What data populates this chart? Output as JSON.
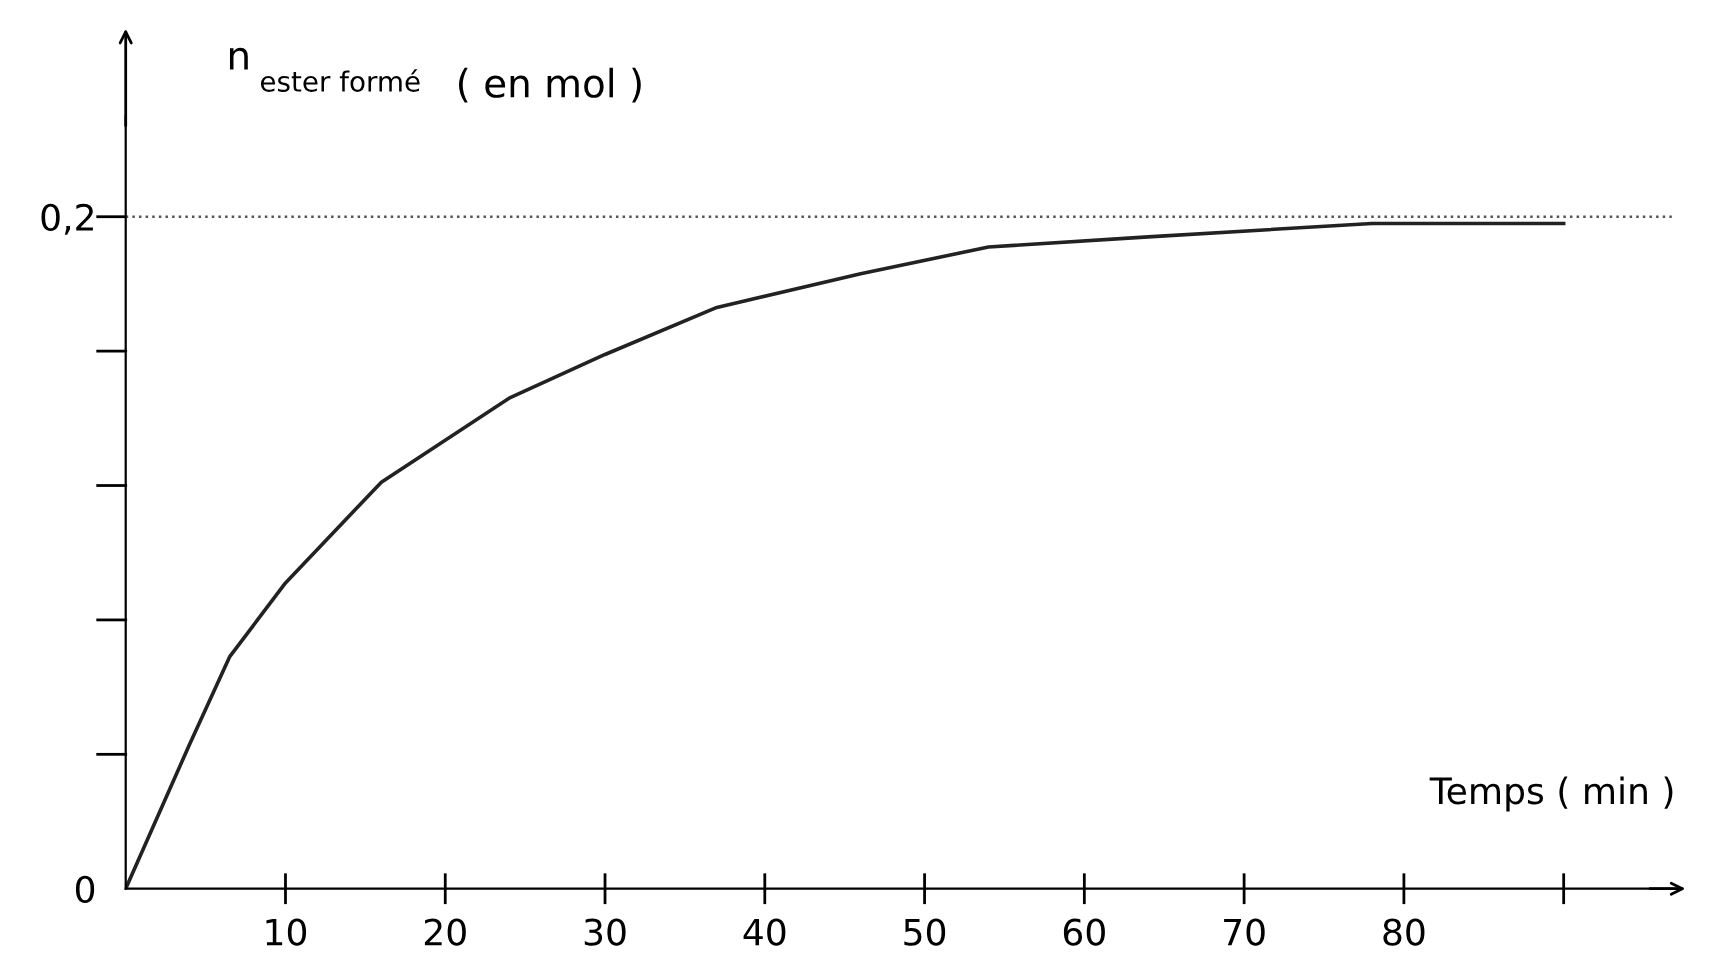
{
  "chart_data": {
    "type": "line",
    "xlabel": "Temps ( min )",
    "ylabel": "n$_{ester formé}$ ( en mol )",
    "x": [
      0,
      4,
      6.5,
      10,
      16,
      24,
      30,
      37,
      46,
      54,
      64,
      78,
      90
    ],
    "series": [
      {
        "color": "#222222",
        "values": [
          0,
          0.043,
          0.069,
          0.091,
          0.121,
          0.146,
          0.159,
          0.173,
          0.183,
          0.191,
          0.194,
          0.198,
          0.198
        ]
      }
    ],
    "xlim": [
      0,
      97
    ],
    "ylim": [
      0,
      0.23
    ],
    "xticks": [
      10,
      20,
      30,
      40,
      50,
      60,
      70,
      80,
      {
        "value": 90,
        "label": null
      }
    ],
    "yticks": [
      {
        "value": 0,
        "label": "0"
      },
      {
        "value": 0.04,
        "label": null
      },
      {
        "value": 0.08,
        "label": null
      },
      {
        "value": 0.12,
        "label": null
      },
      {
        "value": 0.16,
        "label": null
      },
      {
        "value": 0.2,
        "label": "0,2"
      }
    ],
    "ref_lines": [
      {
        "axis": "y",
        "value": 0.2,
        "color": "#555555",
        "line_style": "dotted"
      }
    ],
    "grid": false,
    "marker": "none",
    "line_style": "solid"
  }
}
